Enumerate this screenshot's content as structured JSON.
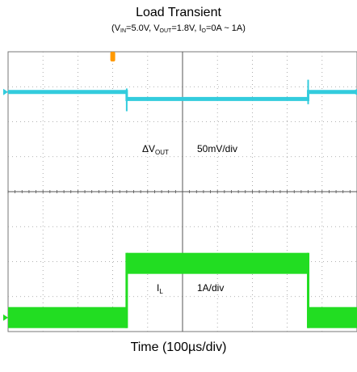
{
  "chart_data": {
    "type": "line",
    "title": "Load Transient",
    "subtitle": {
      "pre1": "(V",
      "sub1": "IN",
      "mid1": "=5.0V, V",
      "sub2": "OUT",
      "mid2": "=1.8V, I",
      "sub3": "O",
      "post": "=0A ~ 1A)"
    },
    "xlabel": "Time (100µs/div)",
    "grid": true,
    "divisions": {
      "x": 10,
      "y": 8
    },
    "series": [
      {
        "name_main": "ΔV",
        "name_sub": "OUT",
        "scale": "50mV/div",
        "color": "#33ccdd",
        "steps": [
          {
            "t_div": 0.0,
            "level_div": 2.85
          },
          {
            "t_div": 3.4,
            "level_div": 2.65
          },
          {
            "t_div": 8.6,
            "level_div": 2.85
          }
        ],
        "spikes": [
          {
            "t_div": 3.4,
            "peak_div": 2.95,
            "dip_div": 2.3
          },
          {
            "t_div": 8.6,
            "peak_div": 3.2,
            "dip_div": 2.5
          }
        ]
      },
      {
        "name_main": "I",
        "name_sub": "L",
        "scale": "1A/div",
        "color": "#22dd22",
        "steps": [
          {
            "t_div": 0.0,
            "level_div": -3.6
          },
          {
            "t_div": 3.4,
            "level_div": -2.05
          },
          {
            "t_div": 8.6,
            "level_div": -3.6
          }
        ]
      }
    ]
  },
  "markers": {
    "trigger_color": "#ff9900"
  }
}
